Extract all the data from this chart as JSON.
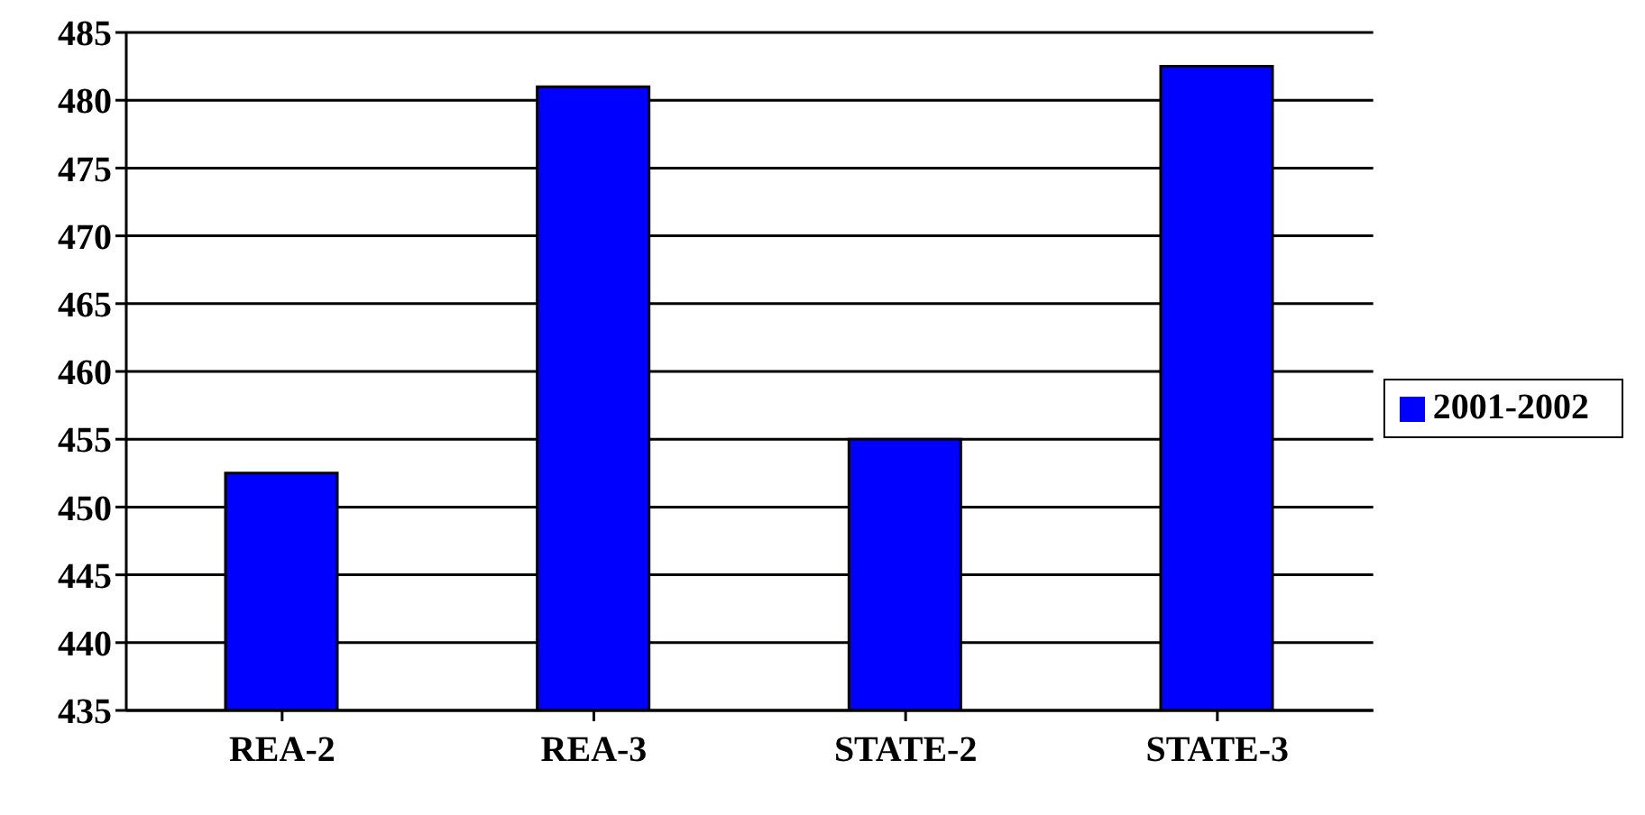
{
  "chart_data": {
    "type": "bar",
    "categories": [
      "REA-2",
      "REA-3",
      "STATE-2",
      "STATE-3"
    ],
    "series": [
      {
        "name": "2001-2002",
        "color": "#0000ff",
        "values": [
          452.5,
          481,
          455,
          482.5
        ]
      }
    ],
    "ylim": [
      435,
      485
    ],
    "yticks": [
      435,
      440,
      445,
      450,
      455,
      460,
      465,
      470,
      475,
      480,
      485
    ],
    "grid": "y",
    "legend": "right"
  }
}
